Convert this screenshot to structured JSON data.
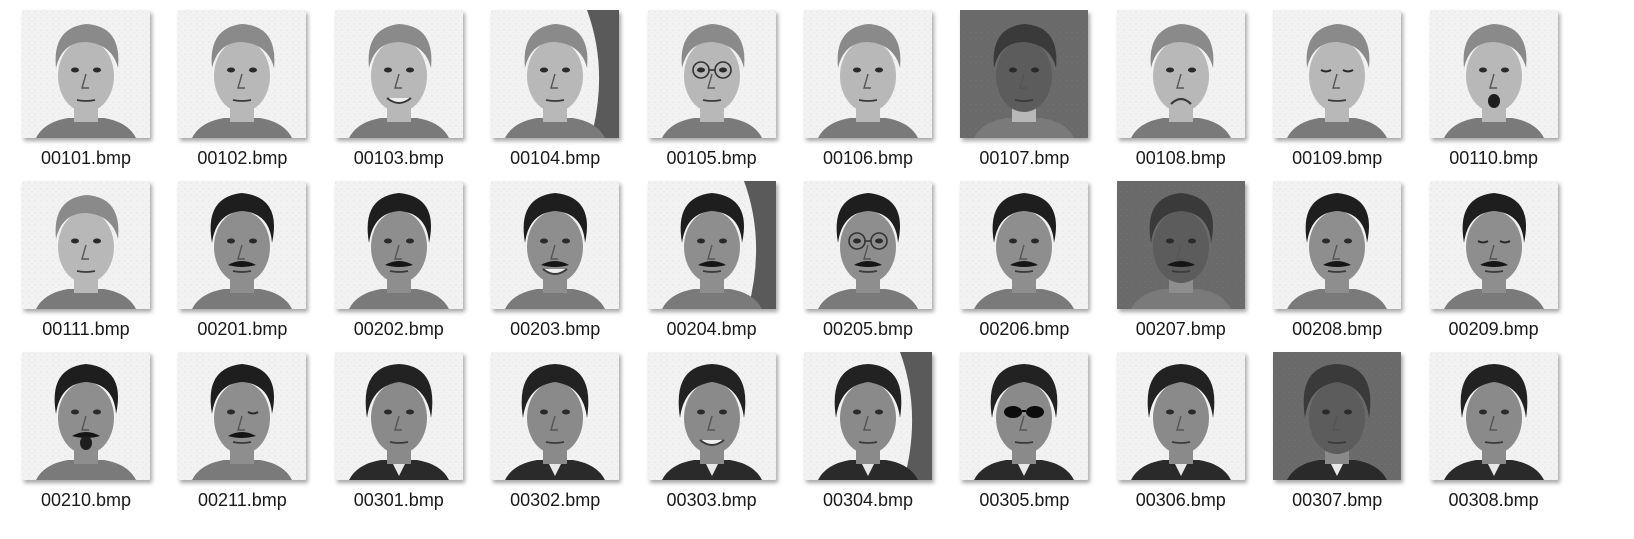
{
  "files": [
    {
      "name": "00101.bmp",
      "subject": 1,
      "variant": "normal"
    },
    {
      "name": "00102.bmp",
      "subject": 1,
      "variant": "normal"
    },
    {
      "name": "00103.bmp",
      "subject": 1,
      "variant": "smile"
    },
    {
      "name": "00104.bmp",
      "subject": 1,
      "variant": "shadow-right"
    },
    {
      "name": "00105.bmp",
      "subject": 1,
      "variant": "glasses"
    },
    {
      "name": "00106.bmp",
      "subject": 1,
      "variant": "normal"
    },
    {
      "name": "00107.bmp",
      "subject": 1,
      "variant": "dark"
    },
    {
      "name": "00108.bmp",
      "subject": 1,
      "variant": "frown"
    },
    {
      "name": "00109.bmp",
      "subject": 1,
      "variant": "eyes-closed"
    },
    {
      "name": "00110.bmp",
      "subject": 1,
      "variant": "surprised"
    },
    {
      "name": "00111.bmp",
      "subject": 1,
      "variant": "normal"
    },
    {
      "name": "00201.bmp",
      "subject": 2,
      "variant": "normal"
    },
    {
      "name": "00202.bmp",
      "subject": 2,
      "variant": "normal"
    },
    {
      "name": "00203.bmp",
      "subject": 2,
      "variant": "smile"
    },
    {
      "name": "00204.bmp",
      "subject": 2,
      "variant": "shadow-right"
    },
    {
      "name": "00205.bmp",
      "subject": 2,
      "variant": "glasses"
    },
    {
      "name": "00206.bmp",
      "subject": 2,
      "variant": "normal"
    },
    {
      "name": "00207.bmp",
      "subject": 2,
      "variant": "dark"
    },
    {
      "name": "00208.bmp",
      "subject": 2,
      "variant": "normal"
    },
    {
      "name": "00209.bmp",
      "subject": 2,
      "variant": "eyes-closed"
    },
    {
      "name": "00210.bmp",
      "subject": 2,
      "variant": "surprised"
    },
    {
      "name": "00211.bmp",
      "subject": 2,
      "variant": "wink"
    },
    {
      "name": "00301.bmp",
      "subject": 3,
      "variant": "normal"
    },
    {
      "name": "00302.bmp",
      "subject": 3,
      "variant": "normal"
    },
    {
      "name": "00303.bmp",
      "subject": 3,
      "variant": "smile"
    },
    {
      "name": "00304.bmp",
      "subject": 3,
      "variant": "shadow-right"
    },
    {
      "name": "00305.bmp",
      "subject": 3,
      "variant": "sunglasses"
    },
    {
      "name": "00306.bmp",
      "subject": 3,
      "variant": "normal"
    },
    {
      "name": "00307.bmp",
      "subject": 3,
      "variant": "dark"
    },
    {
      "name": "00308.bmp",
      "subject": 3,
      "variant": "normal"
    }
  ]
}
